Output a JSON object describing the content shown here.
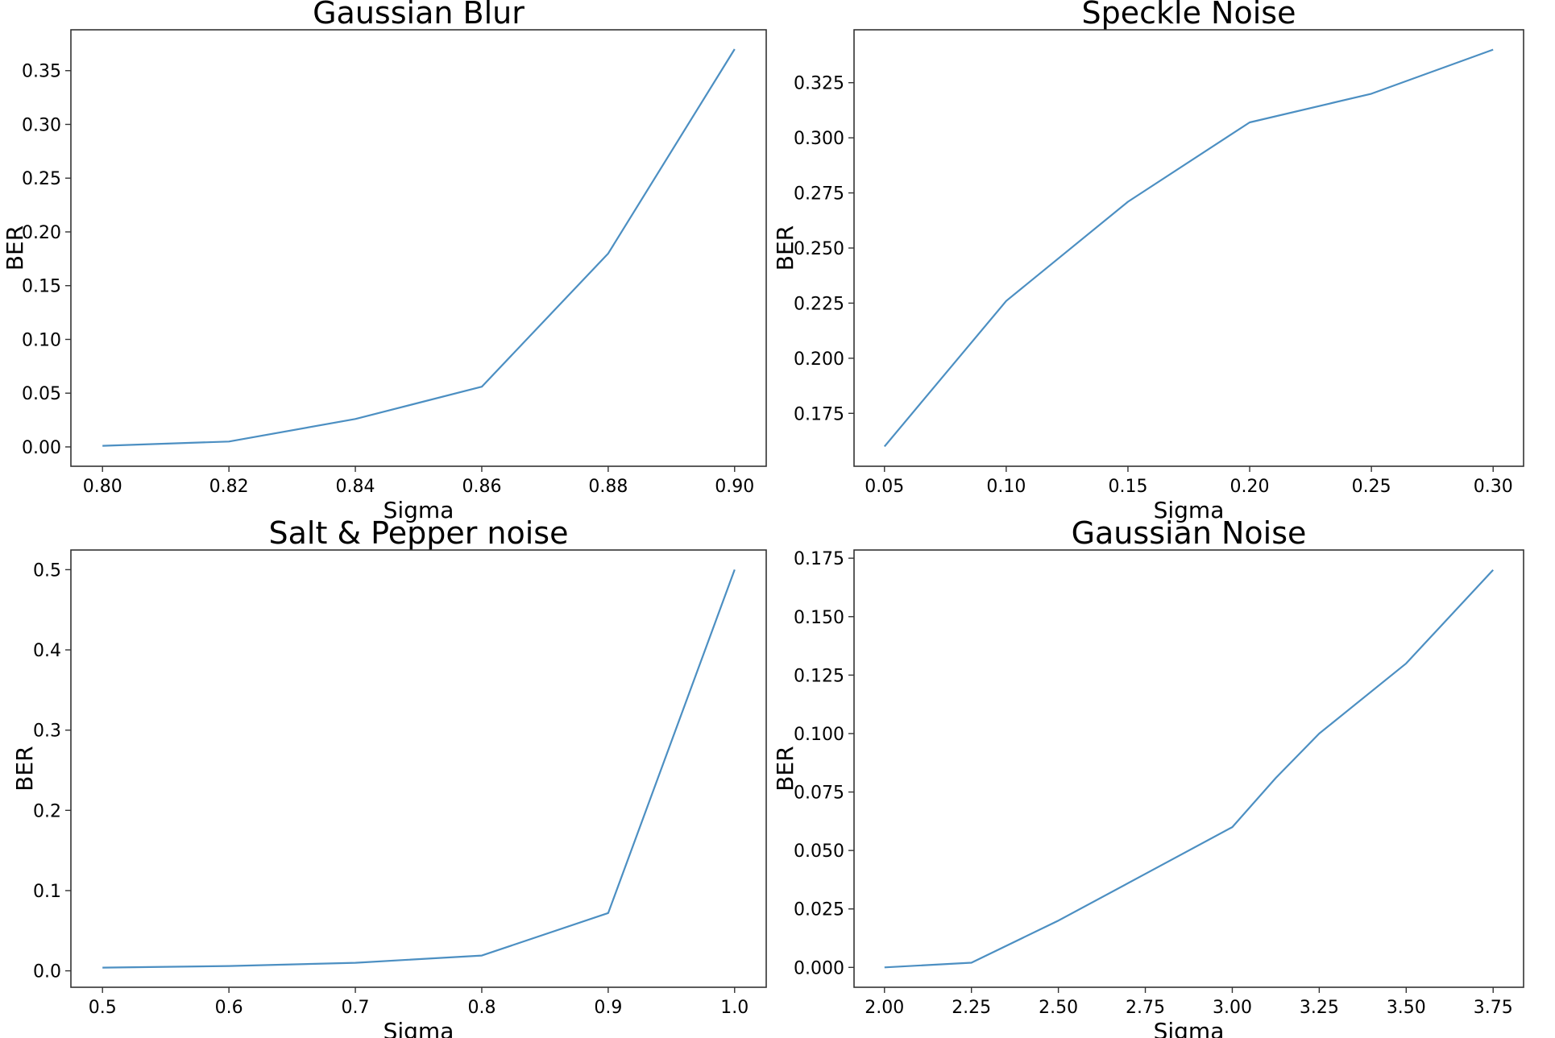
{
  "chart_data": [
    {
      "type": "line",
      "title": "Gaussian Blur",
      "xlabel": "Sigma",
      "ylabel": "BER",
      "xlim": [
        0.795,
        0.905
      ],
      "ylim": [
        -0.018,
        0.388
      ],
      "xticks": [
        0.8,
        0.82,
        0.84,
        0.86,
        0.88,
        0.9
      ],
      "xtick_labels": [
        "0.80",
        "0.82",
        "0.84",
        "0.86",
        "0.88",
        "0.90"
      ],
      "yticks": [
        0.0,
        0.05,
        0.1,
        0.15,
        0.2,
        0.25,
        0.3,
        0.35
      ],
      "ytick_labels": [
        "0.00",
        "0.05",
        "0.10",
        "0.15",
        "0.20",
        "0.25",
        "0.30",
        "0.35"
      ],
      "color": "#4c8fc2",
      "x": [
        0.8,
        0.82,
        0.84,
        0.86,
        0.88,
        0.9
      ],
      "y": [
        0.001,
        0.005,
        0.026,
        0.056,
        0.18,
        0.37
      ]
    },
    {
      "type": "line",
      "title": "Speckle Noise",
      "xlabel": "Sigma",
      "ylabel": "BER",
      "xlim": [
        0.0375,
        0.3125
      ],
      "ylim": [
        0.151,
        0.349
      ],
      "xticks": [
        0.05,
        0.1,
        0.15,
        0.2,
        0.25,
        0.3
      ],
      "xtick_labels": [
        "0.05",
        "0.10",
        "0.15",
        "0.20",
        "0.25",
        "0.30"
      ],
      "yticks": [
        0.175,
        0.2,
        0.225,
        0.25,
        0.275,
        0.3,
        0.325
      ],
      "ytick_labels": [
        "0.175",
        "0.200",
        "0.225",
        "0.250",
        "0.275",
        "0.300",
        "0.325"
      ],
      "color": "#4c8fc2",
      "x": [
        0.05,
        0.1,
        0.15,
        0.2,
        0.25,
        0.3
      ],
      "y": [
        0.16,
        0.226,
        0.271,
        0.307,
        0.32,
        0.34
      ]
    },
    {
      "type": "line",
      "title": "Salt & Pepper noise",
      "xlabel": "Sigma",
      "ylabel": "BER",
      "xlim": [
        0.475,
        1.025
      ],
      "ylim": [
        -0.0205,
        0.5245
      ],
      "xticks": [
        0.5,
        0.6,
        0.7,
        0.8,
        0.9,
        1.0
      ],
      "xtick_labels": [
        "0.5",
        "0.6",
        "0.7",
        "0.8",
        "0.9",
        "1.0"
      ],
      "yticks": [
        0.0,
        0.1,
        0.2,
        0.3,
        0.4,
        0.5
      ],
      "ytick_labels": [
        "0.0",
        "0.1",
        "0.2",
        "0.3",
        "0.4",
        "0.5"
      ],
      "color": "#4c8fc2",
      "x": [
        0.5,
        0.6,
        0.7,
        0.8,
        0.9,
        1.0
      ],
      "y": [
        0.004,
        0.006,
        0.01,
        0.019,
        0.072,
        0.5
      ]
    },
    {
      "type": "line",
      "title": "Gaussian Noise",
      "xlabel": "Sigma",
      "ylabel": "BER",
      "xlim": [
        1.9125,
        3.8375
      ],
      "ylim": [
        -0.0085,
        0.1785
      ],
      "xticks": [
        2.0,
        2.25,
        2.5,
        2.75,
        3.0,
        3.25,
        3.5,
        3.75
      ],
      "xtick_labels": [
        "2.00",
        "2.25",
        "2.50",
        "2.75",
        "3.00",
        "3.25",
        "3.50",
        "3.75"
      ],
      "yticks": [
        0.0,
        0.025,
        0.05,
        0.075,
        0.1,
        0.125,
        0.15,
        0.175
      ],
      "ytick_labels": [
        "0.000",
        "0.025",
        "0.050",
        "0.075",
        "0.100",
        "0.125",
        "0.150",
        "0.175"
      ],
      "color": "#4c8fc2",
      "x": [
        2.0,
        2.25,
        2.5,
        2.75,
        3.0,
        3.125,
        3.25,
        3.5,
        3.75
      ],
      "y": [
        0.0,
        0.002,
        0.02,
        0.04,
        0.06,
        0.081,
        0.1,
        0.13,
        0.17
      ]
    }
  ]
}
